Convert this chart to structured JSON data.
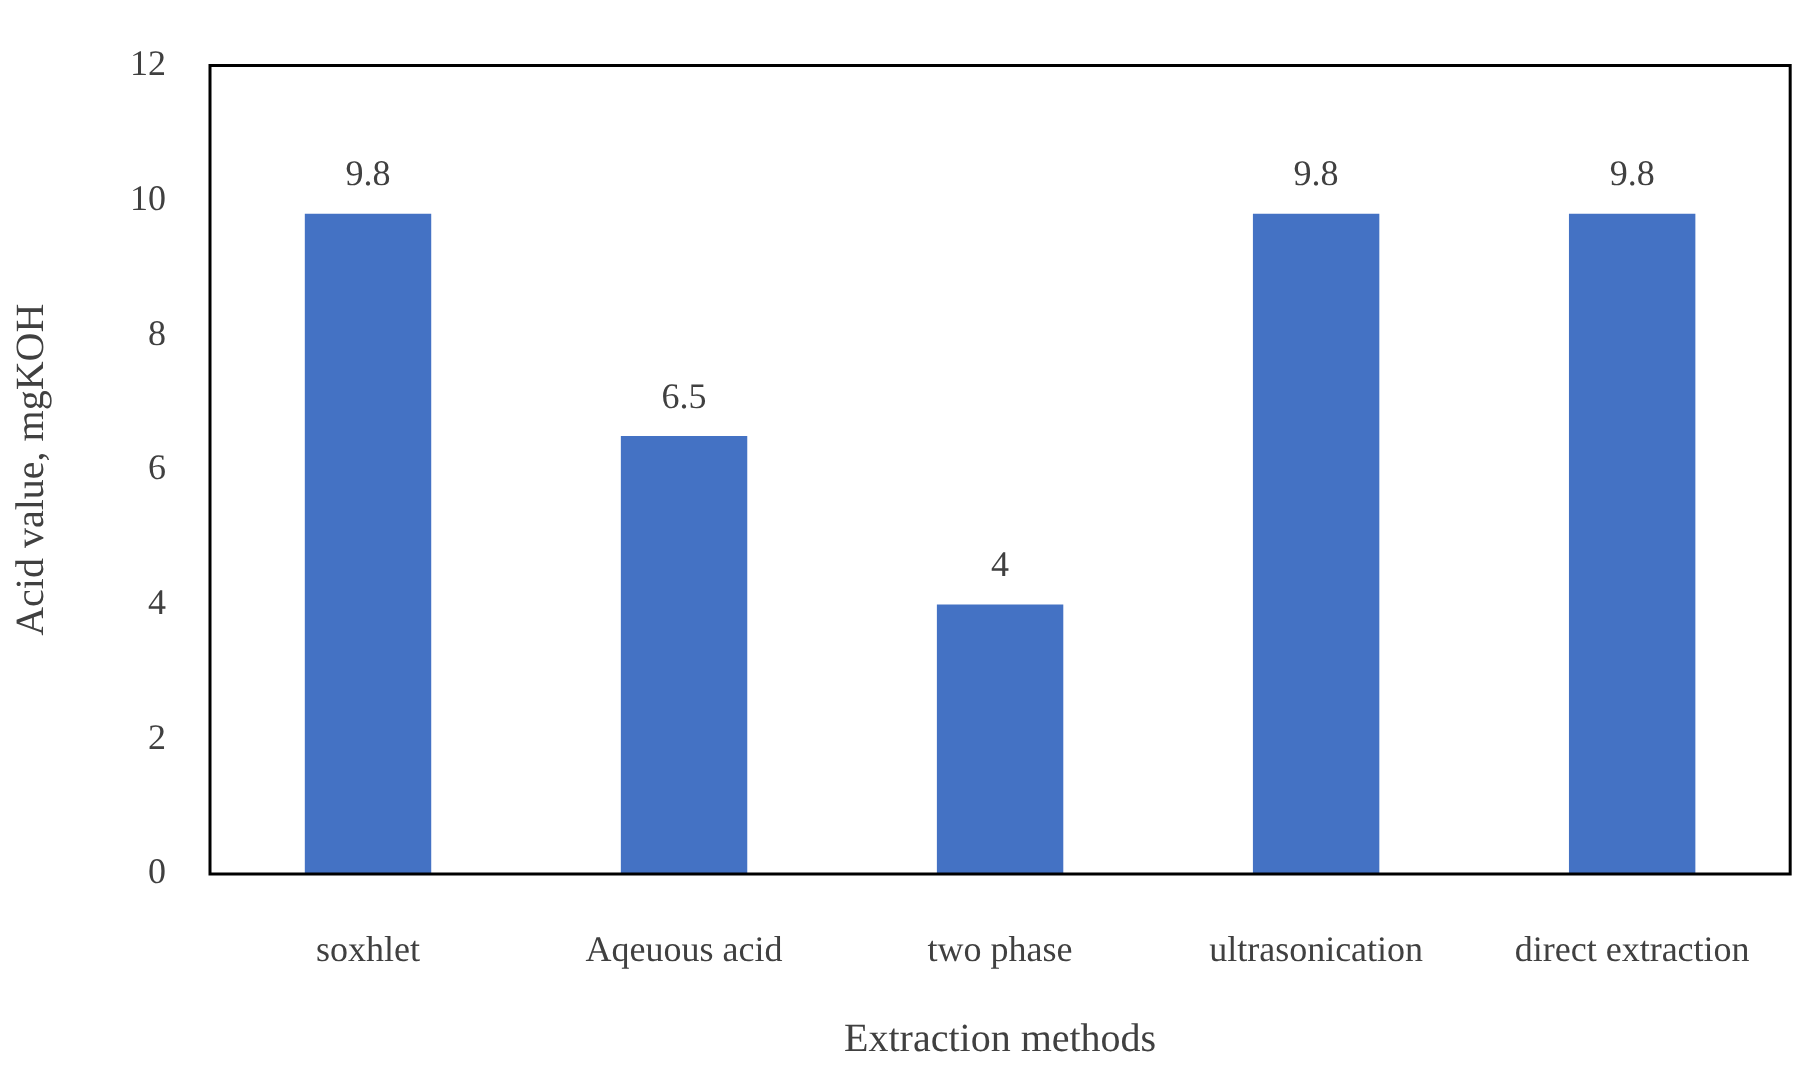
{
  "chart_data": {
    "type": "bar",
    "xlabel": "Extraction methods",
    "ylabel": "Acid value, mgKOH",
    "categories": [
      "soxhlet",
      "Aqeuous acid",
      "two phase",
      "ultrasonication",
      "direct extraction"
    ],
    "values": [
      9.8,
      6.5,
      4,
      9.8,
      9.8
    ],
    "color": "#4472c4",
    "ylim": [
      0,
      12
    ],
    "yticks": [
      0,
      2,
      4,
      6,
      8,
      10,
      12
    ],
    "grid": false,
    "data_labels": true
  }
}
